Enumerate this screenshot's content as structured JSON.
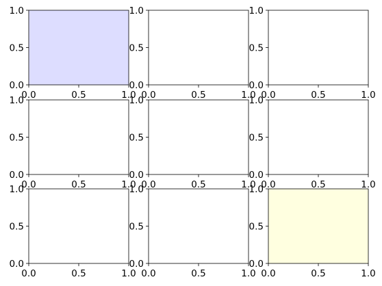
{
  "figure": {
    "background": "#ffffff"
  },
  "chart_data": [
    {
      "type": "empty",
      "background": "#ddddff",
      "xlim": [
        0,
        1
      ],
      "ylim": [
        0,
        1
      ],
      "xticks": [
        0.0,
        0.5,
        1.0
      ],
      "yticks": [
        0.0,
        0.5,
        1.0
      ],
      "xtick_labels": [
        "0.0",
        "0.5",
        "1.0"
      ],
      "ytick_labels": [
        "0.0",
        "0.5",
        "1.0"
      ],
      "grid": false
    },
    {
      "type": "empty",
      "background": "#ffffff",
      "xlim": [
        0,
        1
      ],
      "ylim": [
        0,
        1
      ],
      "xticks": [
        0.0,
        0.5,
        1.0
      ],
      "yticks": [
        0.0,
        0.5,
        1.0
      ],
      "xtick_labels": [
        "0.0",
        "0.5",
        "1.0"
      ],
      "ytick_labels": [
        "0.0",
        "0.5",
        "1.0"
      ],
      "grid": false
    },
    {
      "type": "empty",
      "background": "#ffffff",
      "xlim": [
        0,
        1
      ],
      "ylim": [
        0,
        1
      ],
      "xticks": [
        0.0,
        0.5,
        1.0
      ],
      "yticks": [
        0.0,
        0.5,
        1.0
      ],
      "xtick_labels": [
        "0.0",
        "0.5",
        "1.0"
      ],
      "ytick_labels": [
        "0.0",
        "0.5",
        "1.0"
      ],
      "grid": false
    },
    {
      "type": "empty",
      "background": "#ffffff",
      "xlim": [
        0,
        1
      ],
      "ylim": [
        0,
        1
      ],
      "xticks": [
        0.0,
        0.5,
        1.0
      ],
      "yticks": [
        0.0,
        0.5,
        1.0
      ],
      "xtick_labels": [
        "0.0",
        "0.5",
        "1.0"
      ],
      "ytick_labels": [
        "0.0",
        "0.5",
        "1.0"
      ],
      "grid": false
    },
    {
      "type": "empty",
      "background": "#ffffff",
      "xlim": [
        0,
        1
      ],
      "ylim": [
        0,
        1
      ],
      "xticks": [
        0.0,
        0.5,
        1.0
      ],
      "yticks": [
        0.0,
        0.5,
        1.0
      ],
      "xtick_labels": [
        "0.0",
        "0.5",
        "1.0"
      ],
      "ytick_labels": [
        "0.0",
        "0.5",
        "1.0"
      ],
      "grid": false
    },
    {
      "type": "empty",
      "background": "#ffffff",
      "xlim": [
        0,
        1
      ],
      "ylim": [
        0,
        1
      ],
      "xticks": [
        0.0,
        0.5,
        1.0
      ],
      "yticks": [
        0.0,
        0.5,
        1.0
      ],
      "xtick_labels": [
        "0.0",
        "0.5",
        "1.0"
      ],
      "ytick_labels": [
        "0.0",
        "0.5",
        "1.0"
      ],
      "grid": false
    },
    {
      "type": "empty",
      "background": "#ffffff",
      "xlim": [
        0,
        1
      ],
      "ylim": [
        0,
        1
      ],
      "xticks": [
        0.0,
        0.5,
        1.0
      ],
      "yticks": [
        0.0,
        0.5,
        1.0
      ],
      "xtick_labels": [
        "0.0",
        "0.5",
        "1.0"
      ],
      "ytick_labels": [
        "0.0",
        "0.5",
        "1.0"
      ],
      "grid": false
    },
    {
      "type": "empty",
      "background": "#ffffff",
      "xlim": [
        0,
        1
      ],
      "ylim": [
        0,
        1
      ],
      "xticks": [
        0.0,
        0.5,
        1.0
      ],
      "yticks": [
        0.0,
        0.5,
        1.0
      ],
      "xtick_labels": [
        "0.0",
        "0.5",
        "1.0"
      ],
      "ytick_labels": [
        "0.0",
        "0.5",
        "1.0"
      ],
      "grid": false
    },
    {
      "type": "empty",
      "background": "#ffffe0",
      "xlim": [
        0,
        1
      ],
      "ylim": [
        0,
        1
      ],
      "xticks": [
        0.0,
        0.5,
        1.0
      ],
      "yticks": [
        0.0,
        0.5,
        1.0
      ],
      "xtick_labels": [
        "0.0",
        "0.5",
        "1.0"
      ],
      "ytick_labels": [
        "0.0",
        "0.5",
        "1.0"
      ],
      "grid": false
    }
  ]
}
